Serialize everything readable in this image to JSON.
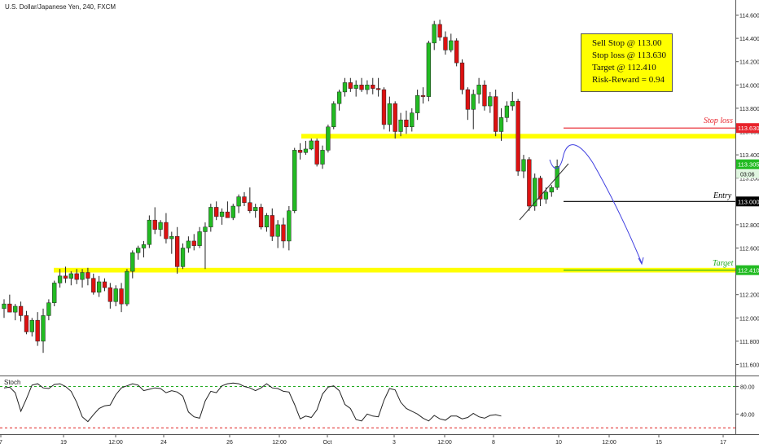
{
  "header": {
    "title": "U.S. Dollar/Japanese Yen, 240, FXCM"
  },
  "info_box": {
    "line1": "Sell Stop @ 113.00",
    "line2": "Stop loss @ 113.630",
    "line3": "Target @ 112.410",
    "line4": "Risk-Reward = 0.94"
  },
  "annotations": {
    "stop_loss": "Stop loss",
    "entry": "Entry",
    "target": "Target"
  },
  "price_badges": {
    "stop_loss": "113.630",
    "last": "113.305",
    "timer": "03:06",
    "entry": "113.000",
    "target": "112.410"
  },
  "indicator": {
    "name": "Stoch"
  },
  "colors": {
    "up": "#22bb22",
    "down": "#dd1111",
    "zone": "#ffff00",
    "stop_loss": "#e8222a",
    "entry": "#000000",
    "target": "#22aa22",
    "projection": "#4040e0",
    "stoch_line": "#222222",
    "stoch_upper": "#22aa22",
    "stoch_lower": "#e02020"
  },
  "chart_data": [
    {
      "type": "candlestick",
      "title": "U.S. Dollar/Japanese Yen, 240, FXCM",
      "ylim": [
        111.5,
        114.7
      ],
      "y_ticks": [
        111.6,
        111.8,
        112.0,
        112.2,
        112.4,
        112.6,
        112.8,
        113.0,
        113.2,
        113.4,
        113.6,
        113.8,
        114.0,
        114.2,
        114.4,
        114.6
      ],
      "x_tick_labels": [
        "7",
        "19",
        "12:00",
        "24",
        "26",
        "12:00",
        "Oct",
        "3",
        "12:00",
        "8",
        "10",
        "12:00",
        "15",
        "17"
      ],
      "candles": [
        [
          112.08,
          112.16,
          112.0,
          112.12
        ],
        [
          112.12,
          112.2,
          112.05,
          112.05
        ],
        [
          112.05,
          112.12,
          111.98,
          112.1
        ],
        [
          112.1,
          112.14,
          111.97,
          112.02
        ],
        [
          112.02,
          112.06,
          111.86,
          111.88
        ],
        [
          111.88,
          112.0,
          111.84,
          111.98
        ],
        [
          111.98,
          112.05,
          111.76,
          111.8
        ],
        [
          111.8,
          112.08,
          111.7,
          112.02
        ],
        [
          112.02,
          112.16,
          111.98,
          112.13
        ],
        [
          112.13,
          112.32,
          112.1,
          112.3
        ],
        [
          112.3,
          112.42,
          112.26,
          112.36
        ],
        [
          112.36,
          112.44,
          112.3,
          112.34
        ],
        [
          112.34,
          112.4,
          112.28,
          112.38
        ],
        [
          112.38,
          112.42,
          112.29,
          112.33
        ],
        [
          112.33,
          112.42,
          112.26,
          112.39
        ],
        [
          112.39,
          112.43,
          112.28,
          112.34
        ],
        [
          112.34,
          112.38,
          112.2,
          112.22
        ],
        [
          112.22,
          112.36,
          112.18,
          112.31
        ],
        [
          112.31,
          112.34,
          112.23,
          112.26
        ],
        [
          112.26,
          112.3,
          112.08,
          112.14
        ],
        [
          112.14,
          112.28,
          112.1,
          112.25
        ],
        [
          112.25,
          112.3,
          112.05,
          112.12
        ],
        [
          112.12,
          112.42,
          112.1,
          112.4
        ],
        [
          112.4,
          112.58,
          112.34,
          112.56
        ],
        [
          112.56,
          112.62,
          112.5,
          112.6
        ],
        [
          112.6,
          112.66,
          112.52,
          112.63
        ],
        [
          112.63,
          112.88,
          112.6,
          112.84
        ],
        [
          112.84,
          112.95,
          112.72,
          112.76
        ],
        [
          112.76,
          112.84,
          112.7,
          112.82
        ],
        [
          112.82,
          112.9,
          112.64,
          112.68
        ],
        [
          112.68,
          112.74,
          112.55,
          112.7
        ],
        [
          112.7,
          112.78,
          112.38,
          112.44
        ],
        [
          112.44,
          112.64,
          112.42,
          112.6
        ],
        [
          112.6,
          112.7,
          112.56,
          112.66
        ],
        [
          112.66,
          112.72,
          112.58,
          112.62
        ],
        [
          112.62,
          112.78,
          112.6,
          112.74
        ],
        [
          112.74,
          112.82,
          112.42,
          112.78
        ],
        [
          112.78,
          112.98,
          112.74,
          112.95
        ],
        [
          112.95,
          113.0,
          112.84,
          112.87
        ],
        [
          112.87,
          112.94,
          112.8,
          112.91
        ],
        [
          112.91,
          113.0,
          112.86,
          112.86
        ],
        [
          112.86,
          112.98,
          112.84,
          112.96
        ],
        [
          112.96,
          113.06,
          112.9,
          113.04
        ],
        [
          113.04,
          113.08,
          112.96,
          112.99
        ],
        [
          112.99,
          113.12,
          112.9,
          112.92
        ],
        [
          112.92,
          112.98,
          112.86,
          112.95
        ],
        [
          112.95,
          112.98,
          112.76,
          112.78
        ],
        [
          112.78,
          112.9,
          112.74,
          112.88
        ],
        [
          112.88,
          112.94,
          112.66,
          112.7
        ],
        [
          112.7,
          112.84,
          112.6,
          112.8
        ],
        [
          112.8,
          112.86,
          112.6,
          112.66
        ],
        [
          112.66,
          112.96,
          112.58,
          112.92
        ],
        [
          112.92,
          113.46,
          112.9,
          113.44
        ],
        [
          113.44,
          113.5,
          113.36,
          113.42
        ],
        [
          113.42,
          113.52,
          113.4,
          113.45
        ],
        [
          113.45,
          113.54,
          113.44,
          113.52
        ],
        [
          113.52,
          113.54,
          113.3,
          113.32
        ],
        [
          113.32,
          113.48,
          113.28,
          113.44
        ],
        [
          113.44,
          113.66,
          113.42,
          113.64
        ],
        [
          113.64,
          113.86,
          113.62,
          113.84
        ],
        [
          113.84,
          113.96,
          113.78,
          113.94
        ],
        [
          113.94,
          114.06,
          113.9,
          114.02
        ],
        [
          114.02,
          114.06,
          113.94,
          113.97
        ],
        [
          113.97,
          114.04,
          113.9,
          114.0
        ],
        [
          114.0,
          114.06,
          113.94,
          113.96
        ],
        [
          113.96,
          114.04,
          113.92,
          114.0
        ],
        [
          114.0,
          114.06,
          113.92,
          113.97
        ],
        [
          113.97,
          114.06,
          113.9,
          113.96
        ],
        [
          113.96,
          113.98,
          113.62,
          113.66
        ],
        [
          113.66,
          113.9,
          113.6,
          113.84
        ],
        [
          113.84,
          113.86,
          113.54,
          113.6
        ],
        [
          113.6,
          113.76,
          113.56,
          113.7
        ],
        [
          113.7,
          113.78,
          113.58,
          113.64
        ],
        [
          113.64,
          113.8,
          113.6,
          113.76
        ],
        [
          113.76,
          113.96,
          113.7,
          113.91
        ],
        [
          113.91,
          113.98,
          113.84,
          113.9
        ],
        [
          113.9,
          114.38,
          113.86,
          114.36
        ],
        [
          114.36,
          114.55,
          114.3,
          114.52
        ],
        [
          114.52,
          114.56,
          114.38,
          114.41
        ],
        [
          114.41,
          114.46,
          114.26,
          114.3
        ],
        [
          114.3,
          114.44,
          114.28,
          114.38
        ],
        [
          114.38,
          114.4,
          114.16,
          114.19
        ],
        [
          114.19,
          114.22,
          113.92,
          113.96
        ],
        [
          113.96,
          113.98,
          113.7,
          113.79
        ],
        [
          113.79,
          113.96,
          113.62,
          113.92
        ],
        [
          113.92,
          114.06,
          113.84,
          114.0
        ],
        [
          114.0,
          114.04,
          113.78,
          113.82
        ],
        [
          113.82,
          113.94,
          113.76,
          113.9
        ],
        [
          113.9,
          113.96,
          113.56,
          113.6
        ],
        [
          113.6,
          113.8,
          113.52,
          113.72
        ],
        [
          113.72,
          113.86,
          113.68,
          113.82
        ],
        [
          113.82,
          113.94,
          113.78,
          113.86
        ],
        [
          113.86,
          113.88,
          113.22,
          113.26
        ],
        [
          113.26,
          113.4,
          113.2,
          113.36
        ],
        [
          113.36,
          113.38,
          112.92,
          112.96
        ],
        [
          112.96,
          113.24,
          112.92,
          113.2
        ],
        [
          113.2,
          113.22,
          112.96,
          113.02
        ],
        [
          113.02,
          113.12,
          112.98,
          113.08
        ],
        [
          113.08,
          113.14,
          113.04,
          113.12
        ],
        [
          113.12,
          113.36,
          113.1,
          113.3
        ]
      ],
      "levels": {
        "stop_loss": 113.63,
        "entry": 113.0,
        "target": 112.41
      },
      "zones": [
        {
          "low": 113.54,
          "high": 113.58
        },
        {
          "low": 112.39,
          "high": 112.43
        }
      ]
    },
    {
      "type": "line",
      "title": "Stoch",
      "ylim": [
        20,
        100
      ],
      "y_ticks": [
        40.0,
        80.0
      ],
      "levels": [
        80,
        20
      ],
      "series": [
        {
          "values": [
            78,
            79,
            71,
            44,
            62,
            82,
            84,
            78,
            77,
            83,
            84,
            80,
            73,
            57,
            36,
            29,
            39,
            48,
            52,
            53,
            68,
            78,
            81,
            84,
            82,
            74,
            76,
            78,
            77,
            71,
            74,
            72,
            66,
            43,
            36,
            34,
            59,
            73,
            71,
            81,
            84,
            85,
            84,
            80,
            78,
            74,
            78,
            84,
            78,
            77,
            73,
            72,
            54,
            33,
            37,
            35,
            46,
            69,
            79,
            81,
            74,
            54,
            48,
            32,
            30,
            40,
            37,
            36,
            60,
            77,
            75,
            57,
            48,
            44,
            40,
            34,
            30,
            38,
            33,
            31,
            37,
            37,
            33,
            35,
            41,
            36,
            34,
            38,
            39,
            37
          ]
        }
      ]
    }
  ]
}
